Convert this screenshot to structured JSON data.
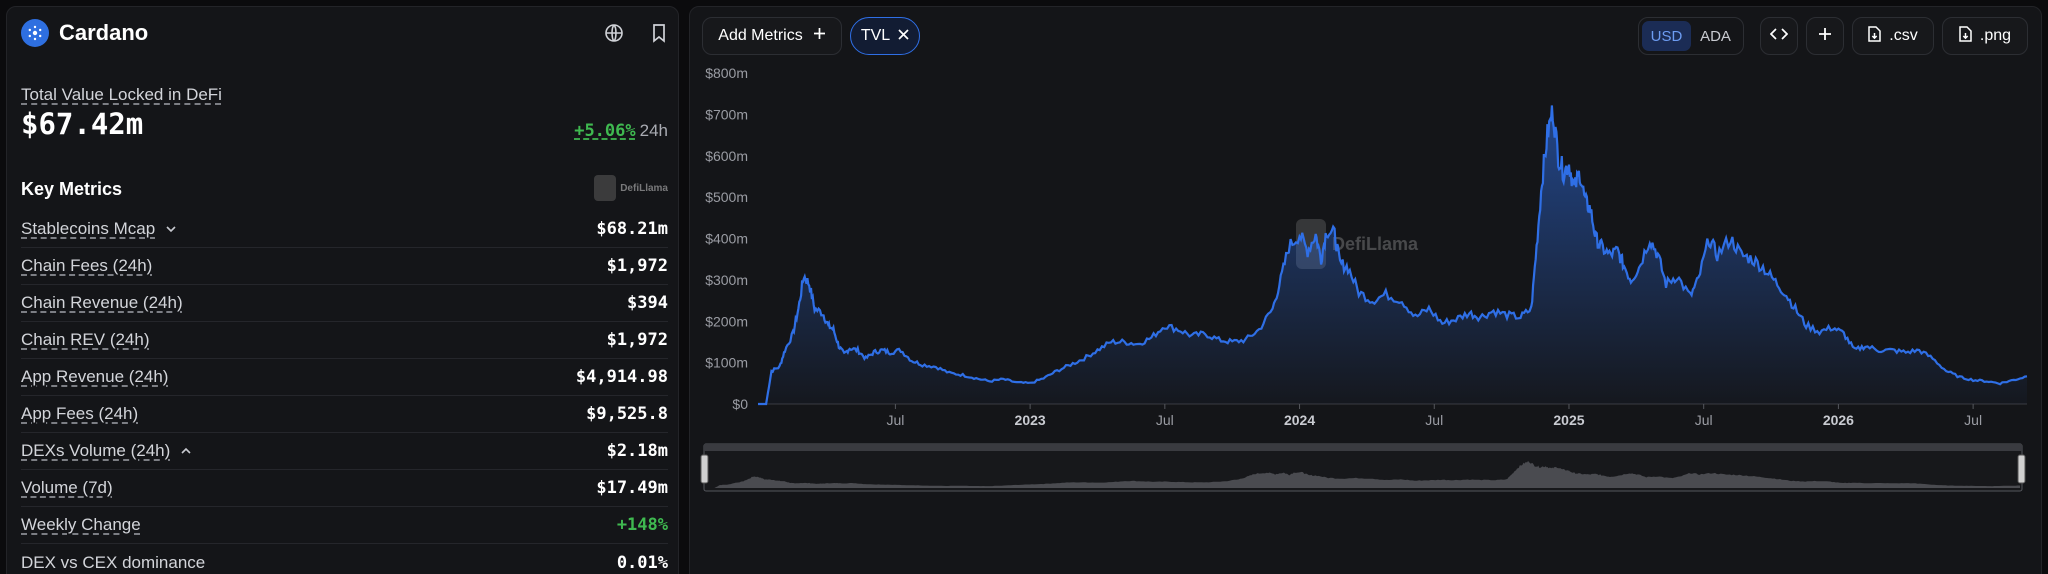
{
  "chain": {
    "name": "Cardano",
    "logo_icon": "cardano-logo-icon",
    "globe_icon": "globe-icon",
    "bookmark_icon": "bookmark-icon"
  },
  "tvl": {
    "label": "Total Value Locked in DeFi",
    "value": "$67.42m",
    "change_pct": "+5.06%",
    "change_period": "24h"
  },
  "key_metrics": {
    "title": "Key Metrics",
    "brand": "DefiLlama",
    "rows": [
      {
        "label": "Stablecoins Mcap",
        "value": "$68.21m",
        "chevron": "down"
      },
      {
        "label": "Chain Fees (24h)",
        "value": "$1,972"
      },
      {
        "label": "Chain Revenue (24h)",
        "value": "$394"
      },
      {
        "label": "Chain REV (24h)",
        "value": "$1,972"
      },
      {
        "label": "App Revenue (24h)",
        "value": "$4,914.98"
      },
      {
        "label": "App Fees (24h)",
        "value": "$9,525.8"
      },
      {
        "label": "DEXs Volume (24h)",
        "value": "$2.18m",
        "chevron": "up"
      },
      {
        "label": "Volume (7d)",
        "value": "$17.49m"
      },
      {
        "label": "Weekly Change",
        "value": "+148%",
        "positive": true
      },
      {
        "label": "DEX vs CEX dominance",
        "value": "0.01%",
        "no_underline": true
      }
    ]
  },
  "toolbar": {
    "add_metrics": "Add Metrics",
    "tvl_chip": "TVL",
    "currencies": [
      "USD",
      "ADA"
    ],
    "selected_currency": "USD",
    "csv": ".csv",
    "png": ".png",
    "embed_icon": "code-icon",
    "plus_icon": "plus-icon"
  },
  "colors": {
    "accent": "#2f6fe6",
    "positive": "#3fb950",
    "line": "#2f6fe6"
  },
  "chart_data": {
    "type": "area",
    "series": [
      {
        "name": "TVL"
      }
    ],
    "y_ticks": [
      "$0",
      "$100m",
      "$200m",
      "$300m",
      "$400m",
      "$500m",
      "$600m",
      "$700m",
      "$800m"
    ],
    "ylim": [
      0,
      800
    ],
    "x_ticks": [
      {
        "label": "Jul",
        "t": 2022.5,
        "year": false
      },
      {
        "label": "2023",
        "t": 2023.0,
        "year": true
      },
      {
        "label": "Jul",
        "t": 2023.5,
        "year": false
      },
      {
        "label": "2024",
        "t": 2024.0,
        "year": true
      },
      {
        "label": "Jul",
        "t": 2024.5,
        "year": false
      },
      {
        "label": "2025",
        "t": 2025.0,
        "year": true
      },
      {
        "label": "Jul",
        "t": 2025.5,
        "year": false
      },
      {
        "label": "2026",
        "t": 2026.0,
        "year": true
      },
      {
        "label": "Jul",
        "t": 2026.5,
        "year": false
      }
    ],
    "xlim": [
      2021.99,
      2026.7
    ],
    "watermark": "DefiLlama",
    "points": [
      [
        2021.99,
        0
      ],
      [
        2022.02,
        0
      ],
      [
        2022.04,
        80
      ],
      [
        2022.07,
        90
      ],
      [
        2022.09,
        130
      ],
      [
        2022.12,
        170
      ],
      [
        2022.14,
        230
      ],
      [
        2022.16,
        310
      ],
      [
        2022.18,
        290
      ],
      [
        2022.2,
        230
      ],
      [
        2022.23,
        220
      ],
      [
        2022.25,
        190
      ],
      [
        2022.27,
        180
      ],
      [
        2022.29,
        140
      ],
      [
        2022.31,
        120
      ],
      [
        2022.33,
        135
      ],
      [
        2022.36,
        130
      ],
      [
        2022.39,
        110
      ],
      [
        2022.42,
        125
      ],
      [
        2022.45,
        130
      ],
      [
        2022.48,
        125
      ],
      [
        2022.52,
        130
      ],
      [
        2022.56,
        105
      ],
      [
        2022.6,
        95
      ],
      [
        2022.65,
        90
      ],
      [
        2022.7,
        75
      ],
      [
        2022.75,
        70
      ],
      [
        2022.8,
        62
      ],
      [
        2022.85,
        55
      ],
      [
        2022.9,
        60
      ],
      [
        2022.95,
        52
      ],
      [
        2023.0,
        50
      ],
      [
        2023.05,
        62
      ],
      [
        2023.1,
        80
      ],
      [
        2023.15,
        95
      ],
      [
        2023.2,
        110
      ],
      [
        2023.25,
        130
      ],
      [
        2023.3,
        150
      ],
      [
        2023.35,
        150
      ],
      [
        2023.4,
        145
      ],
      [
        2023.45,
        160
      ],
      [
        2023.5,
        190
      ],
      [
        2023.55,
        180
      ],
      [
        2023.6,
        165
      ],
      [
        2023.65,
        170
      ],
      [
        2023.7,
        155
      ],
      [
        2023.75,
        150
      ],
      [
        2023.8,
        155
      ],
      [
        2023.85,
        180
      ],
      [
        2023.9,
        230
      ],
      [
        2023.93,
        300
      ],
      [
        2023.96,
        380
      ],
      [
        2024.0,
        410
      ],
      [
        2024.03,
        370
      ],
      [
        2024.06,
        410
      ],
      [
        2024.08,
        350
      ],
      [
        2024.1,
        420
      ],
      [
        2024.13,
        410
      ],
      [
        2024.15,
        340
      ],
      [
        2024.18,
        330
      ],
      [
        2024.22,
        270
      ],
      [
        2024.27,
        250
      ],
      [
        2024.32,
        265
      ],
      [
        2024.38,
        250
      ],
      [
        2024.43,
        210
      ],
      [
        2024.48,
        230
      ],
      [
        2024.53,
        195
      ],
      [
        2024.58,
        205
      ],
      [
        2024.63,
        220
      ],
      [
        2024.67,
        210
      ],
      [
        2024.72,
        225
      ],
      [
        2024.77,
        215
      ],
      [
        2024.82,
        210
      ],
      [
        2024.86,
        230
      ],
      [
        2024.88,
        380
      ],
      [
        2024.9,
        540
      ],
      [
        2024.92,
        650
      ],
      [
        2024.94,
        710
      ],
      [
        2024.96,
        600
      ],
      [
        2024.98,
        560
      ],
      [
        2025.0,
        580
      ],
      [
        2025.02,
        520
      ],
      [
        2025.04,
        560
      ],
      [
        2025.06,
        490
      ],
      [
        2025.08,
        470
      ],
      [
        2025.1,
        400
      ],
      [
        2025.12,
        380
      ],
      [
        2025.15,
        360
      ],
      [
        2025.18,
        370
      ],
      [
        2025.2,
        340
      ],
      [
        2025.23,
        300
      ],
      [
        2025.26,
        330
      ],
      [
        2025.3,
        400
      ],
      [
        2025.33,
        360
      ],
      [
        2025.36,
        290
      ],
      [
        2025.4,
        310
      ],
      [
        2025.45,
        260
      ],
      [
        2025.48,
        300
      ],
      [
        2025.52,
        400
      ],
      [
        2025.55,
        360
      ],
      [
        2025.6,
        400
      ],
      [
        2025.64,
        360
      ],
      [
        2025.68,
        350
      ],
      [
        2025.72,
        330
      ],
      [
        2025.76,
        300
      ],
      [
        2025.8,
        270
      ],
      [
        2025.84,
        230
      ],
      [
        2025.88,
        190
      ],
      [
        2025.93,
        175
      ],
      [
        2025.98,
        185
      ],
      [
        2026.02,
        170
      ],
      [
        2026.06,
        130
      ],
      [
        2026.1,
        140
      ],
      [
        2026.15,
        130
      ],
      [
        2026.2,
        130
      ],
      [
        2026.25,
        125
      ],
      [
        2026.3,
        130
      ],
      [
        2026.35,
        110
      ],
      [
        2026.4,
        80
      ],
      [
        2026.45,
        65
      ],
      [
        2026.5,
        58
      ],
      [
        2026.55,
        55
      ],
      [
        2026.6,
        50
      ],
      [
        2026.65,
        58
      ],
      [
        2026.7,
        67
      ]
    ]
  }
}
